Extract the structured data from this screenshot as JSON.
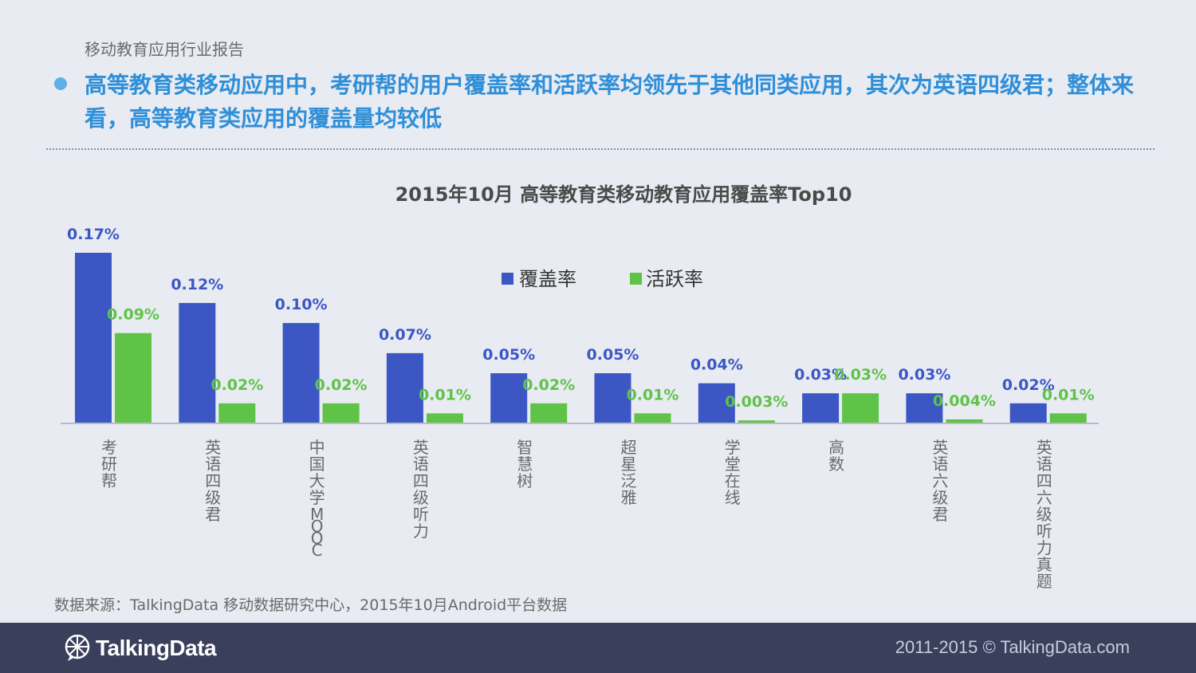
{
  "header": {
    "report_label": "移动教育应用行业报告",
    "headline": "高等教育类移动应用中，考研帮的用户覆盖率和活跃率均领先于其他同类应用，其次为英语四级君；整体来看，高等教育类应用的覆盖量均较低"
  },
  "colors": {
    "coverage": "#3c57c4",
    "activity": "#5ec347",
    "headline": "#2f8fd8",
    "footer_bg": "#3a3f5c"
  },
  "chart_data": {
    "type": "bar",
    "title": "2015年10月 高等教育类移动教育应用覆盖率Top10",
    "categories": [
      "考研帮",
      "英语四级君",
      "中国大学MOOC",
      "英语四级听力",
      "智慧树",
      "超星泛雅",
      "学堂在线",
      "高数",
      "英语六级君",
      "英语四六级听力真题"
    ],
    "series": [
      {
        "name": "覆盖率",
        "values": [
          0.17,
          0.12,
          0.1,
          0.07,
          0.05,
          0.05,
          0.04,
          0.03,
          0.03,
          0.02
        ],
        "labels": [
          "0.17%",
          "0.12%",
          "0.10%",
          "0.07%",
          "0.05%",
          "0.05%",
          "0.04%",
          "0.03%",
          "0.03%",
          "0.02%"
        ],
        "color": "#3c57c4"
      },
      {
        "name": "活跃率",
        "values": [
          0.09,
          0.02,
          0.02,
          0.01,
          0.02,
          0.01,
          0.003,
          0.03,
          0.004,
          0.01
        ],
        "labels": [
          "0.09%",
          "0.02%",
          "0.02%",
          "0.01%",
          "0.02%",
          "0.01%",
          "0.003%",
          "0.03%",
          "0.004%",
          "0.01%"
        ],
        "color": "#5ec347"
      }
    ],
    "ylim": [
      0,
      0.17
    ],
    "legend": "top-center",
    "grid": false,
    "xlabel": "",
    "ylabel": ""
  },
  "source": "数据来源：TalkingData 移动数据研究中心，2015年10月Android平台数据",
  "footer": {
    "logo_text": "TalkingData",
    "copyright": "2011-2015 © TalkingData.com",
    "logo_icon": "talkingdata-logo-icon"
  }
}
